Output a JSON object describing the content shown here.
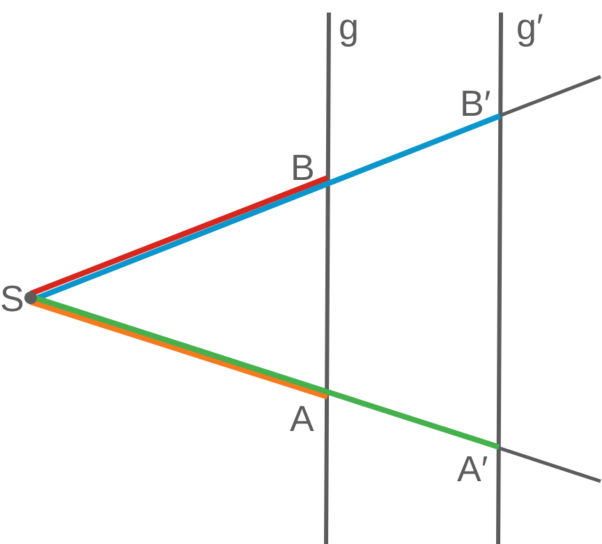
{
  "labels": {
    "g": "g",
    "g_prime": "g′",
    "S": "S",
    "A": "A",
    "A_prime": "A′",
    "B": "B",
    "B_prime": "B′"
  },
  "colors": {
    "line": "#5c5c5e",
    "red": "#d7261e",
    "blue": "#0a96cc",
    "orange": "#f47a20",
    "green": "#44b14c",
    "point": "#5c5c5e",
    "text": "#5c5c5e"
  }
}
